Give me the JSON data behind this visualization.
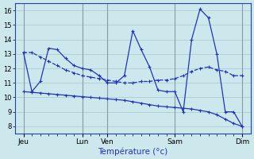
{
  "xlabel": "Température (°c)",
  "bg_color": "#cce8ec",
  "line_color": "#2233bb",
  "ylim": [
    7.5,
    16.5
  ],
  "yticks": [
    8,
    9,
    10,
    11,
    12,
    13,
    14,
    15,
    16
  ],
  "xlim": [
    0,
    28
  ],
  "day_tick_positions": [
    1,
    8,
    11,
    19,
    27
  ],
  "day_tick_labels": [
    "Jeu",
    "Lun",
    "Ven",
    "Sam",
    "Dim"
  ],
  "minor_tick_positions": [
    1,
    2,
    3,
    4,
    5,
    6,
    7,
    8,
    9,
    10,
    11,
    12,
    13,
    14,
    15,
    16,
    17,
    18,
    19,
    20,
    21,
    22,
    23,
    24,
    25,
    26,
    27
  ],
  "line1_x": [
    1,
    2,
    3,
    4,
    5,
    6,
    7,
    8,
    9,
    10,
    11,
    12,
    13,
    14,
    15,
    16,
    17,
    18,
    19,
    20,
    21,
    22,
    23,
    24,
    25,
    26,
    27
  ],
  "line1_y": [
    13.1,
    13.1,
    12.8,
    12.5,
    12.2,
    11.9,
    11.7,
    11.5,
    11.4,
    11.3,
    11.2,
    11.1,
    11.0,
    11.0,
    11.1,
    11.1,
    11.2,
    11.2,
    11.3,
    11.5,
    11.8,
    12.0,
    12.1,
    11.9,
    11.8,
    11.5,
    11.5
  ],
  "line2_x": [
    1,
    2,
    3,
    4,
    5,
    6,
    7,
    8,
    9,
    10,
    11,
    12,
    13,
    14,
    15,
    16,
    17,
    18,
    19,
    20,
    21,
    22,
    23,
    24,
    25,
    26,
    27
  ],
  "line2_y": [
    13.1,
    10.4,
    11.1,
    13.4,
    13.3,
    12.7,
    12.2,
    12.0,
    11.9,
    11.5,
    11.0,
    11.0,
    11.5,
    14.6,
    13.3,
    12.1,
    10.5,
    10.4,
    10.4,
    9.0,
    14.0,
    16.1,
    15.5,
    13.0,
    9.0,
    9.0,
    8.0
  ],
  "line3_x": [
    1,
    2,
    3,
    4,
    5,
    6,
    7,
    8,
    9,
    10,
    11,
    12,
    13,
    14,
    15,
    16,
    17,
    18,
    19,
    20,
    21,
    22,
    23,
    24,
    25,
    26,
    27
  ],
  "line3_y": [
    10.4,
    10.35,
    10.3,
    10.25,
    10.2,
    10.15,
    10.1,
    10.05,
    10.0,
    9.95,
    9.9,
    9.85,
    9.8,
    9.7,
    9.6,
    9.5,
    9.4,
    9.35,
    9.3,
    9.25,
    9.2,
    9.1,
    9.0,
    8.8,
    8.5,
    8.2,
    8.0
  ]
}
